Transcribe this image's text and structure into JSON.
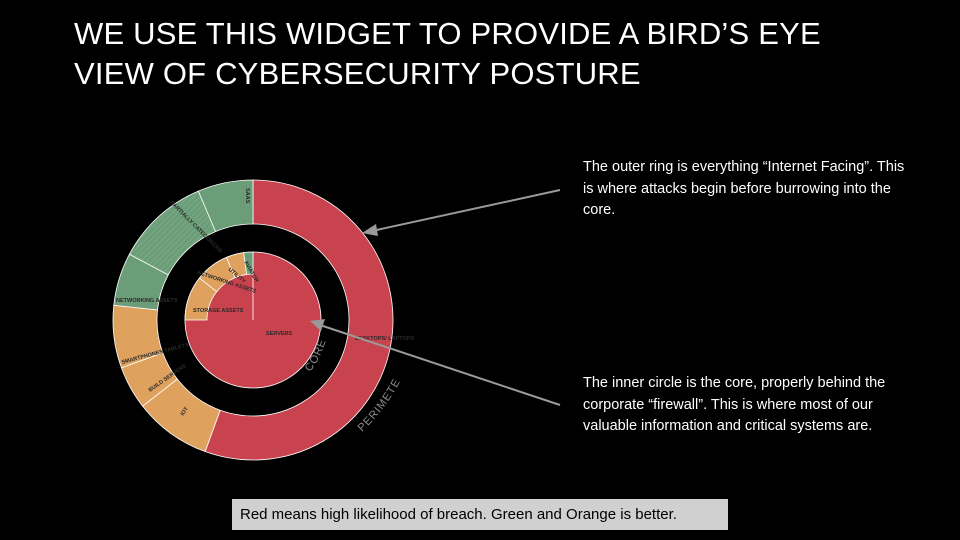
{
  "title": {
    "line1": "WE USE THIS WIDGET TO PROVIDE A BIRD’S EYE",
    "line2": "VIEW OF CYBERSECURITY POSTURE"
  },
  "callouts": {
    "outer": "The outer ring is everything “Internet Facing”. This is where attacks begin before burrowing into the core.",
    "inner": "The inner circle is the core, properly behind the corporate “firewall”. This is where most of our valuable information and critical systems are."
  },
  "legend": "Red means high likelihood of breach. Green and Orange is better.",
  "colors": {
    "red": "#c9434f",
    "green": "#6b9e78",
    "orange": "#dea25e",
    "arrow": "#9a9a9a"
  },
  "ring_labels": {
    "perimeter": "PERIMETER",
    "core": "CORE"
  },
  "outer_segments": [
    {
      "label": "SAAS",
      "status": "green"
    },
    {
      "label": "PARTIALLY CATEGORIZED",
      "status": "green"
    },
    {
      "label": "NETWORKING ASSETS",
      "status": "green"
    },
    {
      "label": "SMARTPHONES TABLETS",
      "status": "orange"
    },
    {
      "label": "BUILD SERVERS",
      "status": "orange"
    },
    {
      "label": "IOT",
      "status": "orange"
    },
    {
      "label": "DESKTOPS/ LAPTOPS",
      "status": "red"
    }
  ],
  "inner_segments": [
    {
      "label": "AVIATOR",
      "status": "green"
    },
    {
      "label": "UTILITY",
      "status": "orange"
    },
    {
      "label": "NETWORKING ASSETS",
      "status": "orange"
    },
    {
      "label": "STORAGE ASSETS",
      "status": "orange"
    },
    {
      "label": "SERVERS",
      "status": "red"
    }
  ]
}
